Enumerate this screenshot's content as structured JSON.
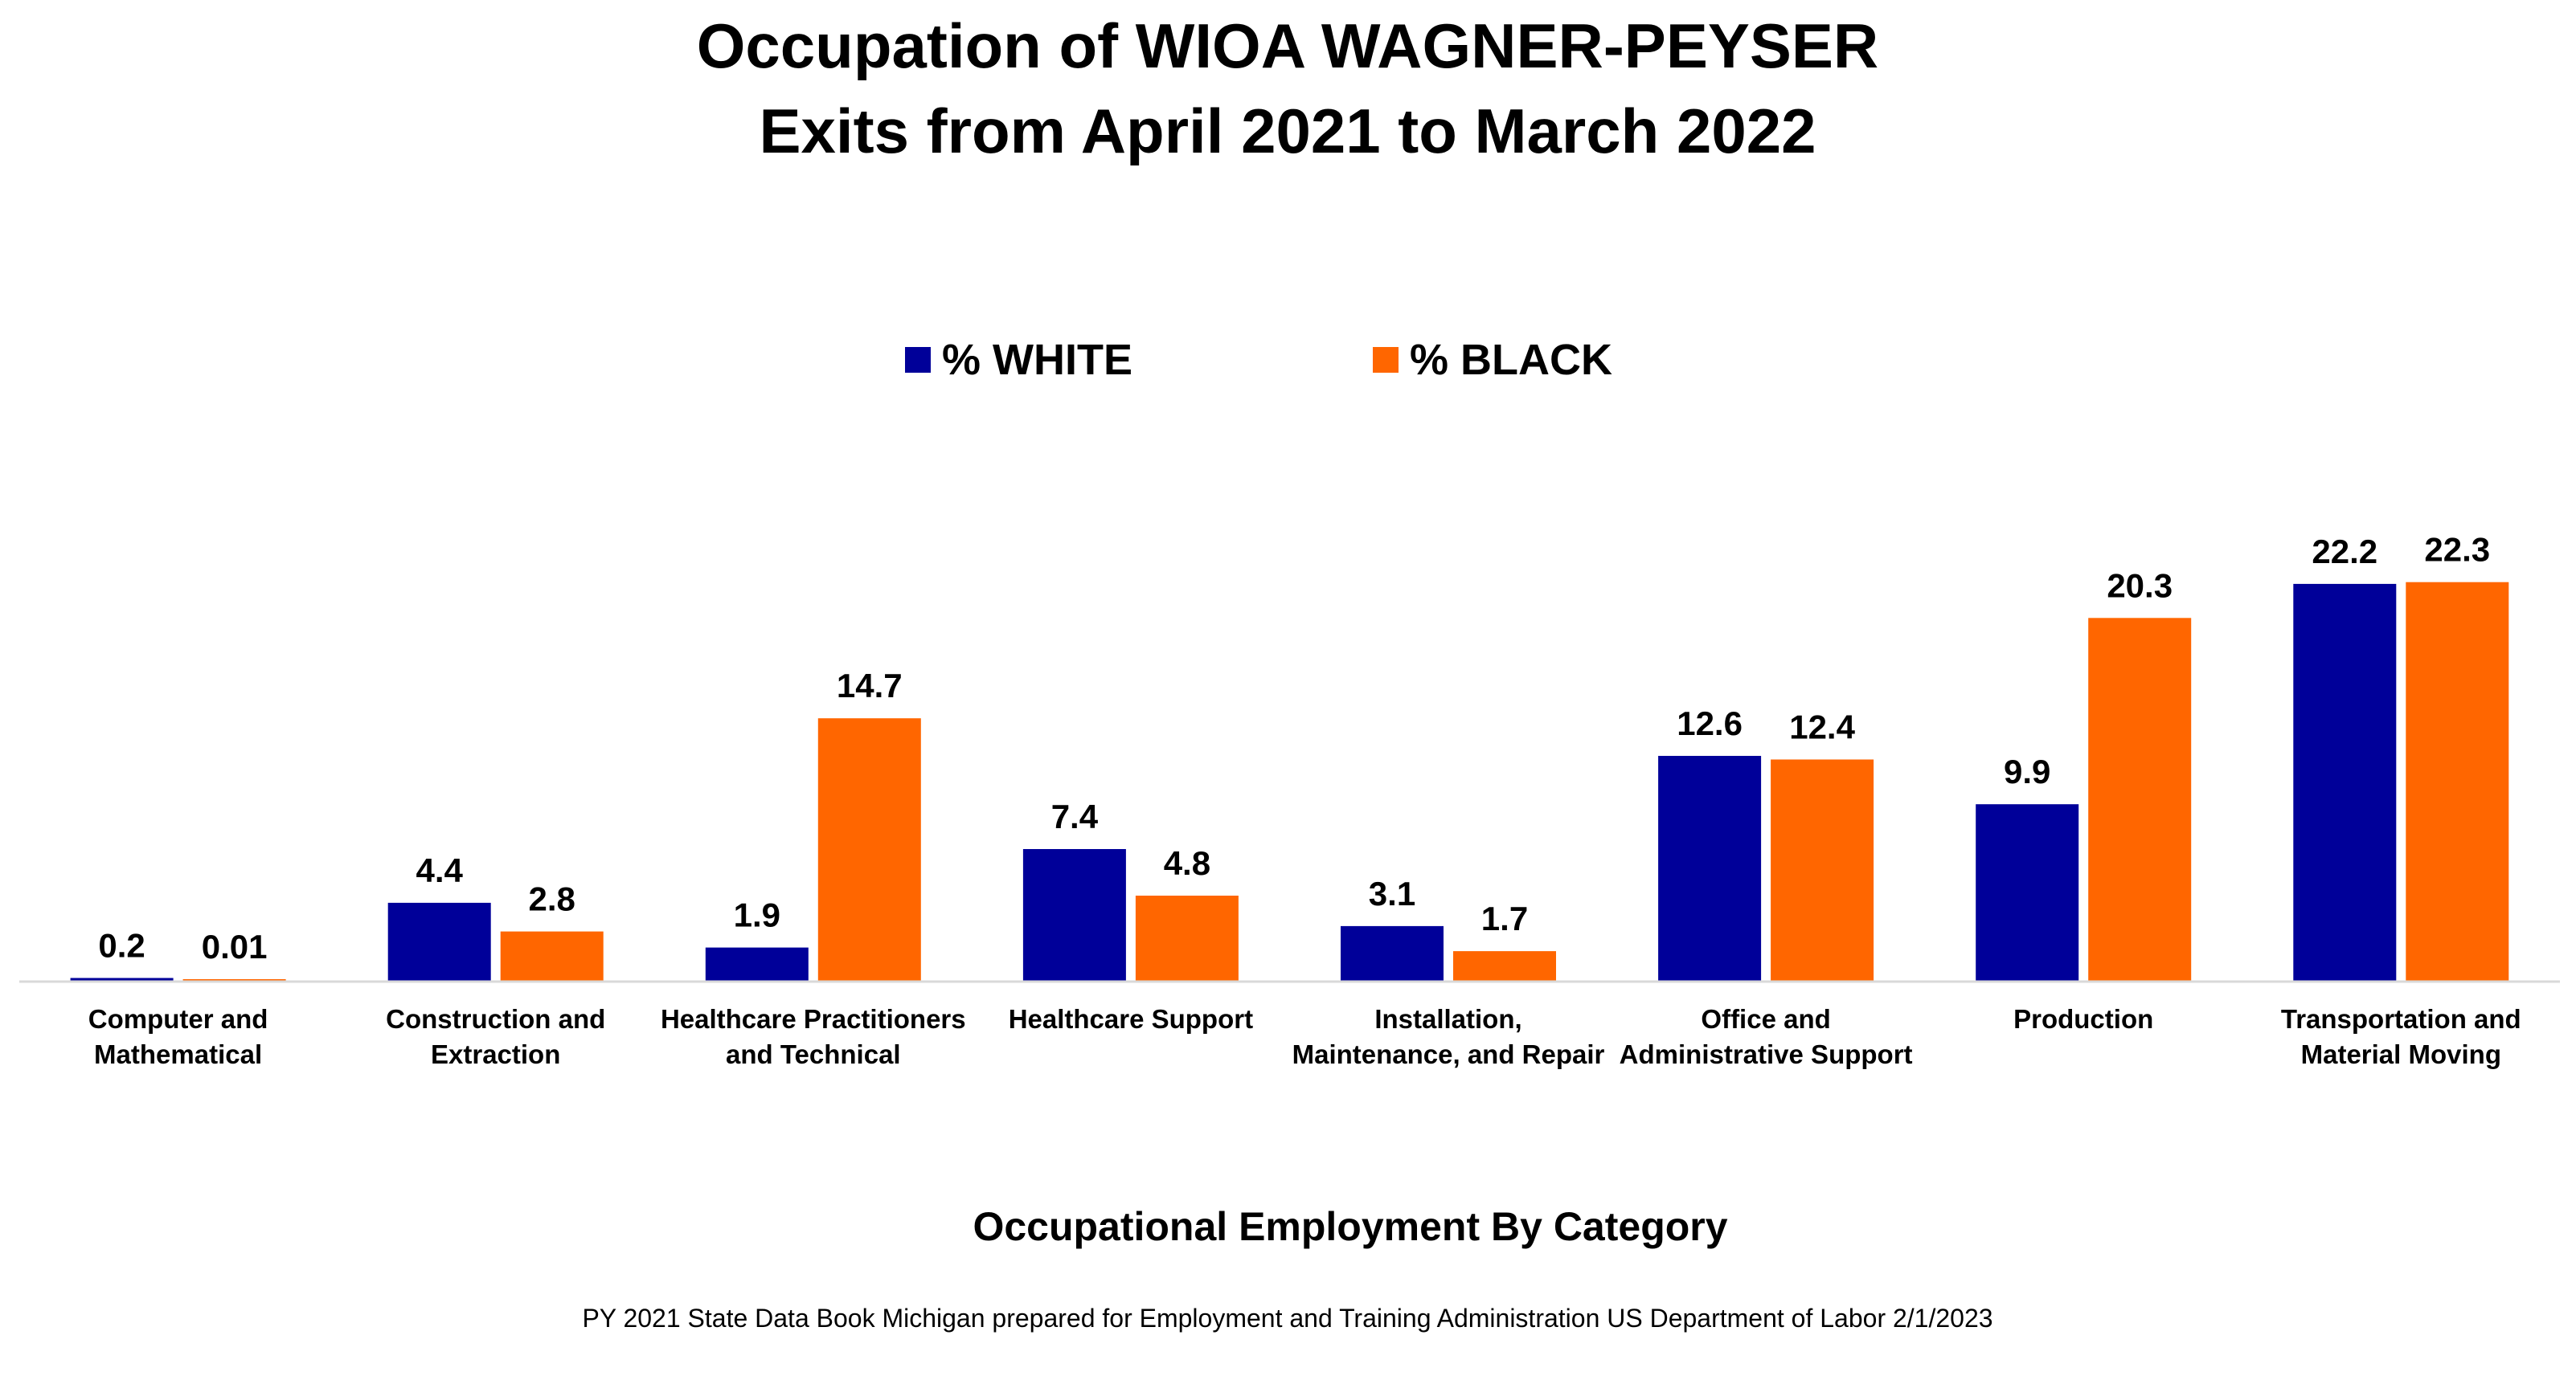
{
  "chart_data": {
    "type": "bar",
    "title_lines": [
      "Occupation of WIOA WAGNER-PEYSER",
      "Exits from April 2021 to March 2022"
    ],
    "xlabel": "Occupational Employment By Category",
    "ylabel": "",
    "source": "PY 2021 State Data Book Michigan prepared for Employment and Training Administration US Department of Labor  2/1/2023",
    "legend_position": "top",
    "grid": false,
    "ylim": [
      0,
      30
    ],
    "categories": [
      [
        "Computer and",
        "Mathematical"
      ],
      [
        "Construction and",
        "Extraction"
      ],
      [
        "Healthcare Practitioners",
        "and Technical"
      ],
      [
        "Healthcare Support"
      ],
      [
        "Installation,",
        "Maintenance, and Repair"
      ],
      [
        "Office and",
        "Administrative Support"
      ],
      [
        "Production"
      ],
      [
        "Transportation and",
        "Material Moving"
      ]
    ],
    "series": [
      {
        "name": "% WHITE",
        "color": "#000099",
        "values": [
          0.2,
          4.4,
          1.9,
          7.4,
          3.1,
          12.6,
          9.9,
          22.2
        ],
        "labels": [
          "0.2",
          "4.4",
          "1.9",
          "7.4",
          "3.1",
          "12.6",
          "9.9",
          "22.2"
        ]
      },
      {
        "name": "% BLACK",
        "color": "#FF6600",
        "values": [
          0.01,
          2.8,
          14.7,
          4.8,
          1.7,
          12.4,
          20.3,
          22.3
        ],
        "labels": [
          "0.01",
          "2.8",
          "14.7",
          "4.8",
          "1.7",
          "12.4",
          "20.3",
          "22.3"
        ]
      }
    ]
  }
}
